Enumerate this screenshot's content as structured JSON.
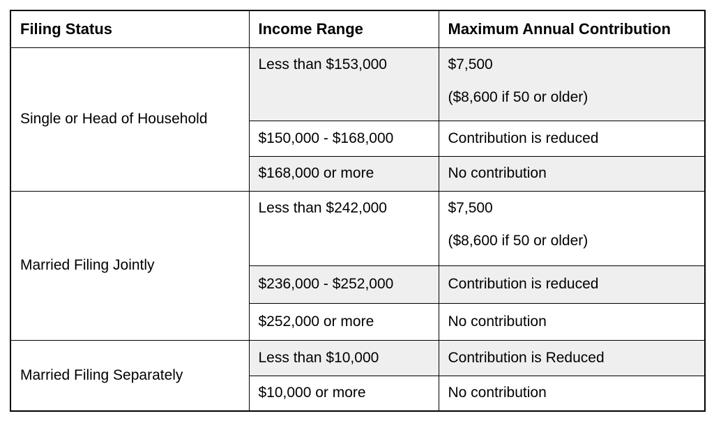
{
  "table": {
    "headers": {
      "filing_status": "Filing Status",
      "income_range": "Income Range",
      "max_contribution": "Maximum Annual Contribution"
    },
    "colors": {
      "border": "#000000",
      "stripe": "#efefef",
      "background": "#ffffff",
      "text": "#000000"
    },
    "groups": [
      {
        "filing_status": "Single or Head of Household",
        "rows": [
          {
            "income_range": "Less than $153,000",
            "contribution": "$7,500",
            "contribution_note": "($8,600 if 50 or older)"
          },
          {
            "income_range": "$150,000 - $168,000",
            "contribution": "Contribution is reduced"
          },
          {
            "income_range": "$168,000 or more",
            "contribution": "No contribution"
          }
        ]
      },
      {
        "filing_status": "Married Filing Jointly",
        "rows": [
          {
            "income_range": "Less than $242,000",
            "contribution": "$7,500",
            "contribution_note": "($8,600 if 50 or older)"
          },
          {
            "income_range": "$236,000 - $252,000",
            "contribution": "Contribution is reduced"
          },
          {
            "income_range": "$252,000 or more",
            "contribution": "No contribution"
          }
        ]
      },
      {
        "filing_status": "Married Filing Separately",
        "rows": [
          {
            "income_range": "Less than $10,000",
            "contribution": "Contribution is Reduced"
          },
          {
            "income_range": "$10,000 or more",
            "contribution": "No contribution"
          }
        ]
      }
    ]
  },
  "chart_data": {
    "type": "table",
    "columns": [
      "Filing Status",
      "Income Range",
      "Maximum Annual Contribution"
    ],
    "rows": [
      [
        "Single or Head of Household",
        "Less than $153,000",
        "$7,500 ($8,600 if 50 or older)"
      ],
      [
        "Single or Head of Household",
        "$150,000 - $168,000",
        "Contribution is reduced"
      ],
      [
        "Single or Head of Household",
        "$168,000 or more",
        "No contribution"
      ],
      [
        "Married Filing Jointly",
        "Less than $242,000",
        "$7,500 ($8,600 if 50 or older)"
      ],
      [
        "Married Filing Jointly",
        "$236,000 - $252,000",
        "Contribution is reduced"
      ],
      [
        "Married Filing Jointly",
        "$252,000 or more",
        "No contribution"
      ],
      [
        "Married Filing Separately",
        "Less than $10,000",
        "Contribution is Reduced"
      ],
      [
        "Married Filing Separately",
        "$10,000 or more",
        "No contribution"
      ]
    ]
  }
}
